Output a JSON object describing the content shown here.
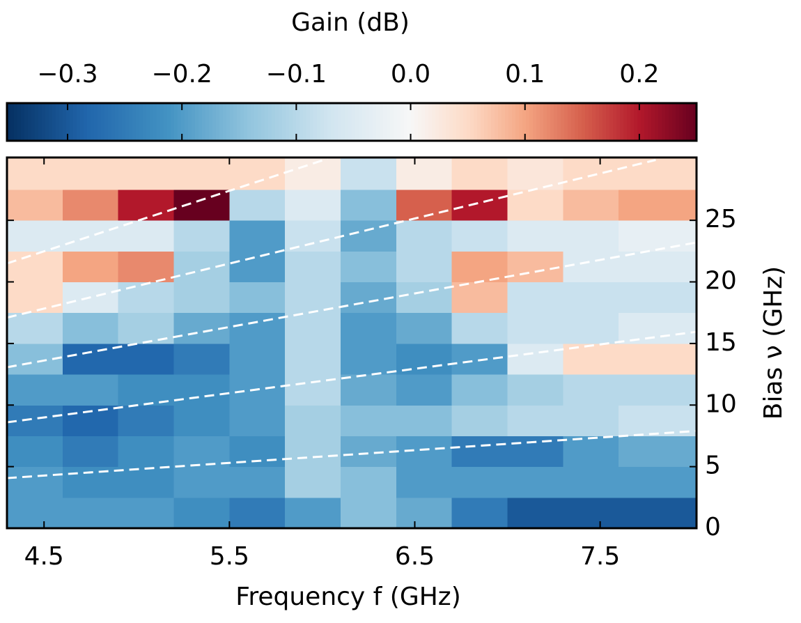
{
  "chart_data": {
    "type": "heatmap",
    "colorbar_label": "Gain (dB)",
    "xlabel": "Frequency f (GHz)",
    "ylabel": "Bias ν (GHz)",
    "colormap": "RdBu_r",
    "clim": [
      -0.353,
      0.25
    ],
    "cticks": [
      {
        "value": -0.3,
        "label": "−0.3"
      },
      {
        "value": -0.2,
        "label": "−0.2"
      },
      {
        "value": -0.1,
        "label": "−0.1"
      },
      {
        "value": 0,
        "label": "0.0"
      },
      0.1,
      0.2
    ],
    "xlim": [
      4.3,
      8.02
    ],
    "ylim": [
      0,
      30.1
    ],
    "xticks": [
      4.5,
      5.5,
      6.5,
      7.5
    ],
    "yticks": [
      0,
      5,
      10,
      15,
      20,
      25
    ],
    "x_edges": [
      4.3,
      4.6,
      4.9,
      5.2,
      5.5,
      5.8,
      6.1,
      6.4,
      6.7,
      7.0,
      7.3,
      7.6,
      8.02
    ],
    "y_edges": [
      0,
      2.5,
      5,
      7.5,
      10,
      12.5,
      15,
      17.5,
      20,
      22.5,
      25,
      27.5,
      30.1
    ],
    "z": [
      [
        -0.2,
        -0.2,
        -0.2,
        -0.22,
        -0.25,
        -0.2,
        -0.15,
        -0.18,
        -0.25,
        -0.3,
        -0.3,
        -0.3
      ],
      [
        -0.2,
        -0.22,
        -0.22,
        -0.2,
        -0.2,
        -0.12,
        -0.15,
        -0.2,
        -0.2,
        -0.2,
        -0.2,
        -0.2
      ],
      [
        -0.22,
        -0.25,
        -0.22,
        -0.2,
        -0.22,
        -0.12,
        -0.18,
        -0.2,
        -0.25,
        -0.25,
        -0.2,
        -0.18
      ],
      [
        -0.25,
        -0.28,
        -0.25,
        -0.22,
        -0.2,
        -0.12,
        -0.15,
        -0.15,
        -0.12,
        -0.1,
        -0.1,
        -0.08
      ],
      [
        -0.2,
        -0.2,
        -0.22,
        -0.22,
        -0.2,
        -0.1,
        -0.18,
        -0.2,
        -0.15,
        -0.12,
        -0.1,
        -0.1
      ],
      [
        -0.15,
        -0.28,
        -0.28,
        -0.25,
        -0.2,
        -0.1,
        -0.2,
        -0.22,
        -0.2,
        -0.05,
        0.05,
        0.05
      ],
      [
        -0.1,
        -0.15,
        -0.12,
        -0.18,
        -0.2,
        -0.1,
        -0.2,
        -0.18,
        -0.1,
        -0.08,
        -0.08,
        -0.05
      ],
      [
        0.05,
        -0.05,
        -0.1,
        -0.12,
        -0.15,
        -0.1,
        -0.18,
        -0.12,
        0.08,
        -0.08,
        -0.08,
        -0.08
      ],
      [
        0.05,
        0.1,
        0.12,
        -0.12,
        -0.2,
        -0.1,
        -0.15,
        -0.1,
        0.1,
        0.08,
        -0.05,
        -0.05
      ],
      [
        -0.05,
        -0.05,
        -0.05,
        -0.1,
        -0.2,
        -0.08,
        -0.18,
        -0.1,
        -0.08,
        -0.05,
        -0.05,
        -0.03
      ],
      [
        0.08,
        0.12,
        0.2,
        0.25,
        -0.1,
        -0.05,
        -0.15,
        0.15,
        0.2,
        0.05,
        0.08,
        0.1
      ],
      [
        0.05,
        0.05,
        0.05,
        0.05,
        0.05,
        0.02,
        -0.08,
        0.02,
        0.05,
        0.03,
        0.05,
        0.05
      ]
    ],
    "lines": [
      {
        "color": "#ffffff",
        "x": [
          4.3,
          8.02
        ],
        "y": [
          4.07,
          7.9
        ]
      },
      {
        "color": "#ffffff",
        "x": [
          4.3,
          8.02
        ],
        "y": [
          8.6,
          15.95
        ]
      },
      {
        "color": "#ffffff",
        "x": [
          4.3,
          8.02
        ],
        "y": [
          13.07,
          23.2
        ]
      },
      {
        "color": "#ffffff",
        "x": [
          4.3,
          7.8
        ],
        "y": [
          17.1,
          29.9
        ]
      },
      {
        "color": "#ffffff",
        "x": [
          4.3,
          6.03
        ],
        "y": [
          21.5,
          30.0
        ]
      }
    ]
  }
}
